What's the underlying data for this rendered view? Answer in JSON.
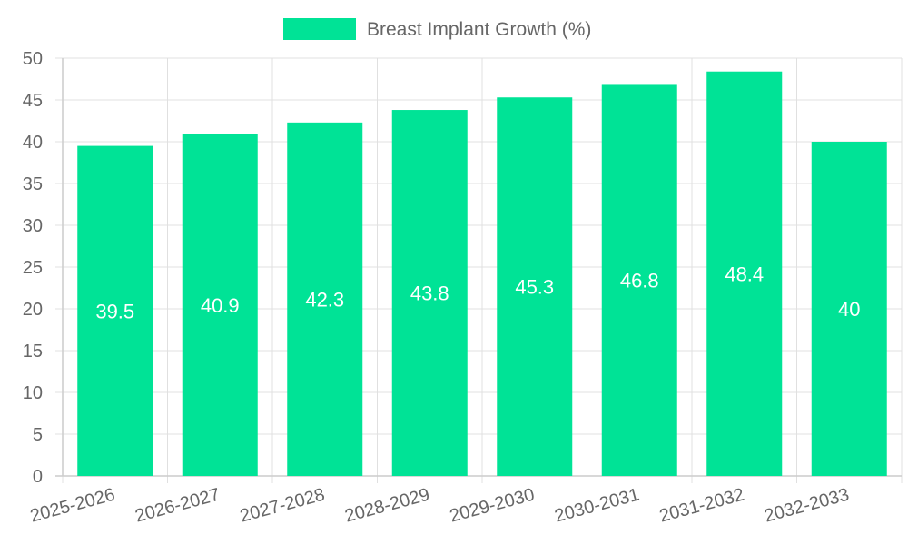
{
  "chart_data": {
    "type": "bar",
    "categories": [
      "2025-2026",
      "2026-2027",
      "2027-2028",
      "2028-2029",
      "2029-2030",
      "2030-2031",
      "2031-2032",
      "2032-2033"
    ],
    "series": [
      {
        "name": "Breast Implant Growth (%)",
        "values": [
          39.5,
          40.9,
          42.3,
          43.8,
          45.3,
          46.8,
          48.4,
          40
        ]
      }
    ],
    "ylim": [
      0,
      50
    ],
    "y_ticks": [
      0,
      5,
      10,
      15,
      20,
      25,
      30,
      35,
      40,
      45,
      50
    ],
    "grid": true,
    "legend_position": "top-center",
    "data_labels": true,
    "colors": {
      "bar": "#00e396",
      "grid": "#e0e0e0",
      "axis": "#cccccc",
      "text": "#666666",
      "label": "#ffffff"
    }
  }
}
